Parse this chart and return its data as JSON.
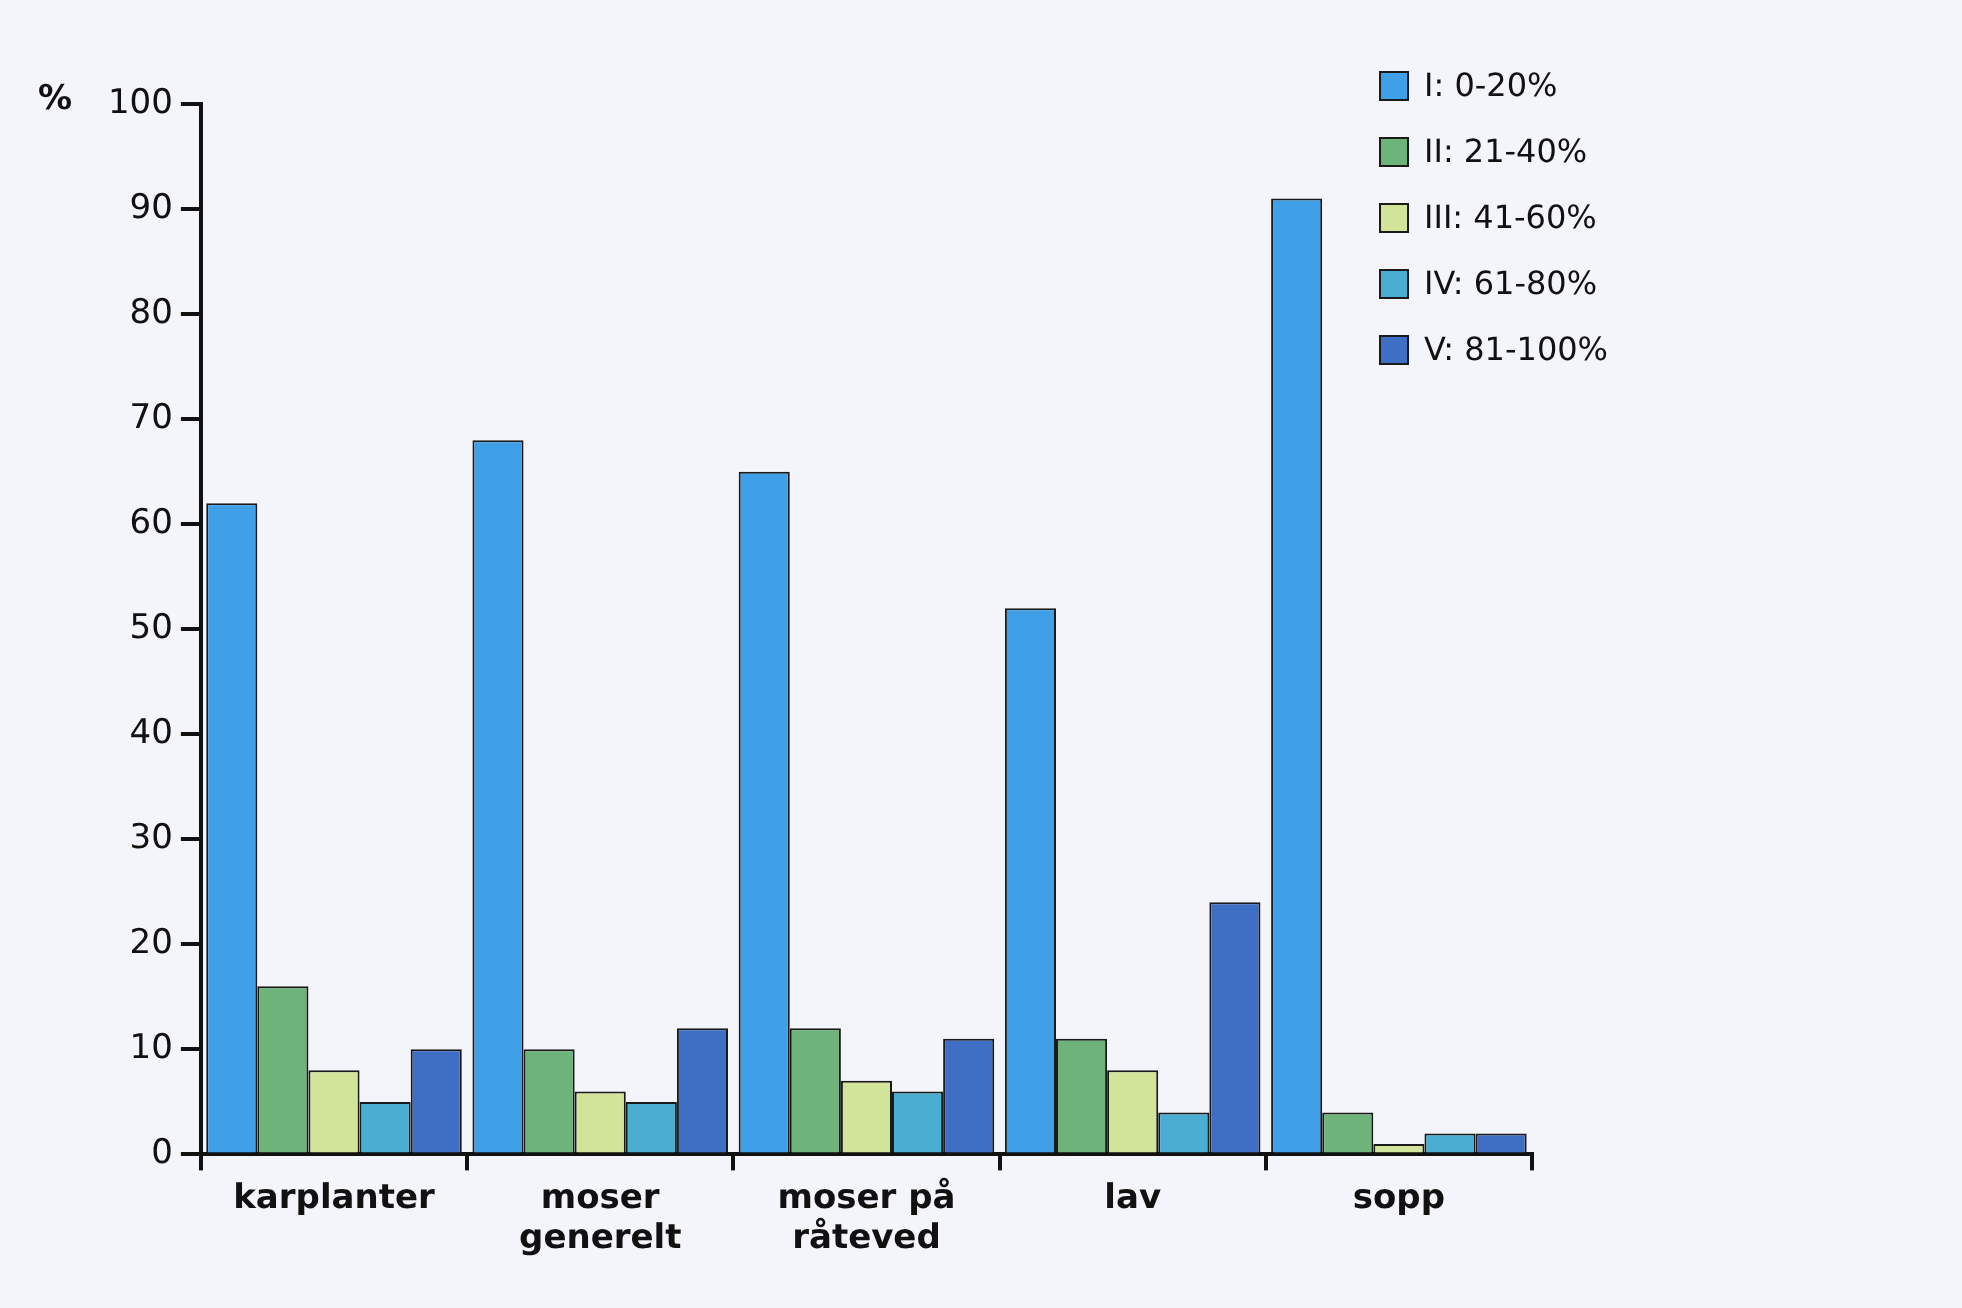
{
  "chart_data": {
    "type": "bar",
    "ylabel": "%",
    "categories": [
      "karplanter",
      "moser generelt",
      "moser på råteved",
      "lav",
      "sopp"
    ],
    "series": [
      {
        "name": "I: 0-20%",
        "color": "#3fa0e8",
        "values": [
          62,
          68,
          65,
          52,
          91
        ]
      },
      {
        "name": "II: 21-40%",
        "color": "#6db37a",
        "values": [
          16,
          10,
          12,
          11,
          4
        ]
      },
      {
        "name": "III: 41-60%",
        "color": "#d2e39a",
        "values": [
          8,
          6,
          7,
          8,
          1
        ]
      },
      {
        "name": "IV: 61-80%",
        "color": "#4aaed3",
        "values": [
          5,
          5,
          6,
          4,
          2
        ]
      },
      {
        "name": "V: 81-100%",
        "color": "#3f6fc4",
        "values": [
          10,
          12,
          11,
          24,
          2
        ]
      }
    ],
    "ylim": [
      0,
      100
    ],
    "yticks": [
      0,
      10,
      20,
      30,
      40,
      50,
      60,
      70,
      80,
      90,
      100
    ],
    "grid": false,
    "legend": "top right"
  }
}
